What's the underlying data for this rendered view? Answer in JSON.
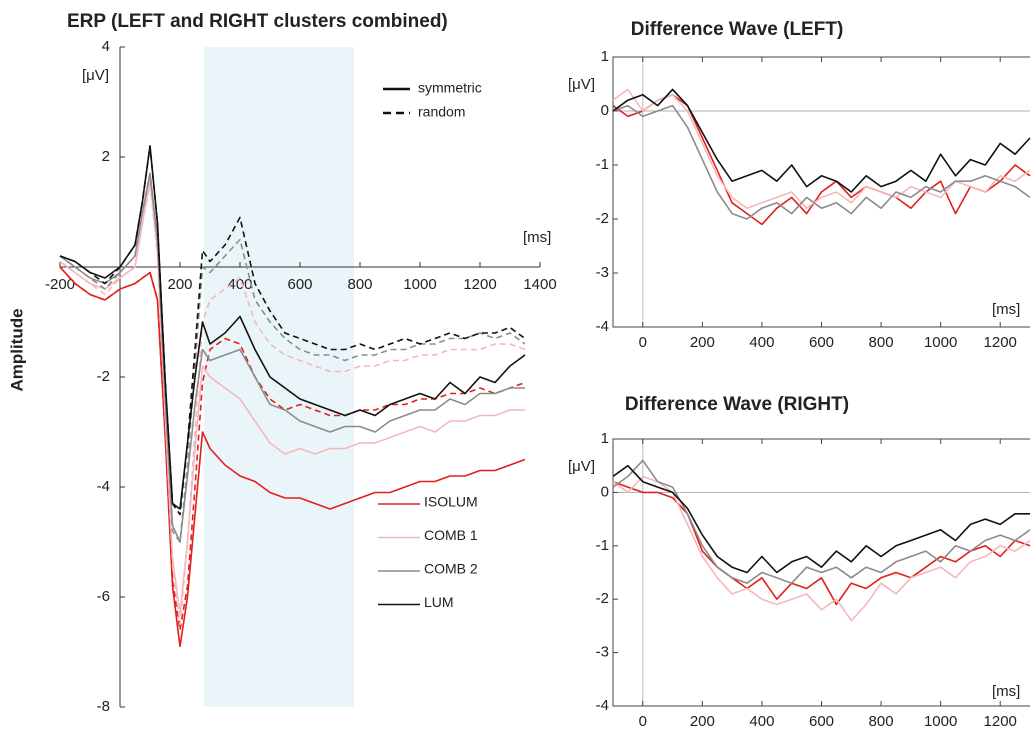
{
  "chart_data": [
    {
      "type": "line",
      "title": "ERP (LEFT and RIGHT clusters combined)",
      "y_label": "Amplitude",
      "y_unit": "[μV]",
      "x_unit": "[ms]",
      "xlim": [
        -200,
        1400
      ],
      "ylim": [
        -8,
        4
      ],
      "xticks": [
        -200,
        200,
        400,
        600,
        800,
        1000,
        1200,
        1400
      ],
      "yticks": [
        -8,
        -6,
        -4,
        -2,
        2,
        4
      ],
      "highlight": [
        280,
        780
      ],
      "line_styles": [
        {
          "name": "symmetric",
          "dash": false
        },
        {
          "name": "random",
          "dash": true
        }
      ],
      "x": [
        -200,
        -150,
        -100,
        -50,
        0,
        50,
        75,
        100,
        125,
        150,
        175,
        200,
        225,
        250,
        275,
        300,
        350,
        400,
        450,
        500,
        550,
        600,
        650,
        700,
        750,
        800,
        850,
        900,
        950,
        1000,
        1050,
        1100,
        1150,
        1200,
        1250,
        1300,
        1350
      ],
      "series": [
        {
          "name": "ISOLUM",
          "color": "#e0201c",
          "values": [
            [
              0.0,
              -0.3,
              -0.5,
              -0.6,
              -0.4,
              -0.3,
              -0.2,
              -0.1,
              -0.6,
              -3.0,
              -5.8,
              -6.9,
              -6.0,
              -4.5,
              -3.0,
              -3.3,
              -3.6,
              -3.8,
              -3.9,
              -4.1,
              -4.2,
              -4.2,
              -4.3,
              -4.4,
              -4.3,
              -4.2,
              -4.1,
              -4.1,
              -4.0,
              -3.9,
              -3.9,
              -3.8,
              -3.8,
              -3.7,
              -3.7,
              -3.6,
              -3.5
            ],
            [
              0.0,
              -0.3,
              -0.5,
              -0.6,
              -0.4,
              -0.3,
              -0.2,
              -0.1,
              -0.6,
              -3.0,
              -5.7,
              -6.6,
              -5.8,
              -4.0,
              -2.1,
              -1.5,
              -1.3,
              -1.4,
              -2.0,
              -2.4,
              -2.6,
              -2.5,
              -2.6,
              -2.7,
              -2.7,
              -2.6,
              -2.6,
              -2.5,
              -2.5,
              -2.4,
              -2.4,
              -2.3,
              -2.3,
              -2.2,
              -2.3,
              -2.2,
              -2.1
            ]
          ]
        },
        {
          "name": "COMB 1",
          "color": "#f4b8bc",
          "values": [
            [
              0.1,
              -0.1,
              -0.3,
              -0.4,
              -0.2,
              0.0,
              0.8,
              1.6,
              0.3,
              -2.6,
              -5.3,
              -6.3,
              -5.0,
              -3.3,
              -1.8,
              -2.0,
              -2.2,
              -2.4,
              -2.8,
              -3.2,
              -3.4,
              -3.3,
              -3.4,
              -3.3,
              -3.3,
              -3.2,
              -3.2,
              -3.1,
              -3.0,
              -2.9,
              -3.0,
              -2.8,
              -2.8,
              -2.7,
              -2.7,
              -2.6,
              -2.6
            ],
            [
              0.1,
              -0.1,
              -0.3,
              -0.5,
              -0.2,
              0.0,
              0.8,
              1.5,
              0.2,
              -2.6,
              -5.4,
              -6.5,
              -5.0,
              -3.0,
              -1.0,
              -0.6,
              -0.4,
              -0.2,
              -1.0,
              -1.4,
              -1.6,
              -1.7,
              -1.8,
              -1.9,
              -1.9,
              -1.8,
              -1.8,
              -1.7,
              -1.7,
              -1.6,
              -1.6,
              -1.5,
              -1.5,
              -1.5,
              -1.4,
              -1.4,
              -1.5
            ]
          ]
        },
        {
          "name": "COMB 2",
          "color": "#8c8c8c",
          "values": [
            [
              0.2,
              0.0,
              -0.2,
              -0.3,
              -0.1,
              0.2,
              1.0,
              1.7,
              0.5,
              -2.3,
              -4.7,
              -5.0,
              -3.8,
              -2.5,
              -1.5,
              -1.7,
              -1.6,
              -1.5,
              -2.0,
              -2.5,
              -2.6,
              -2.8,
              -2.9,
              -3.0,
              -2.9,
              -2.9,
              -3.0,
              -2.8,
              -2.7,
              -2.6,
              -2.6,
              -2.4,
              -2.5,
              -2.3,
              -2.3,
              -2.2,
              -2.2
            ],
            [
              0.2,
              0.0,
              -0.2,
              -0.4,
              -0.1,
              0.2,
              1.0,
              1.7,
              0.5,
              -2.3,
              -4.8,
              -5.0,
              -3.6,
              -1.8,
              0.0,
              -0.1,
              0.2,
              0.5,
              -0.6,
              -1.0,
              -1.3,
              -1.5,
              -1.6,
              -1.6,
              -1.7,
              -1.6,
              -1.6,
              -1.5,
              -1.5,
              -1.4,
              -1.4,
              -1.3,
              -1.3,
              -1.2,
              -1.3,
              -1.2,
              -1.4
            ]
          ]
        },
        {
          "name": "LUM",
          "color": "#111111",
          "values": [
            [
              0.2,
              0.1,
              -0.1,
              -0.2,
              0.0,
              0.4,
              1.2,
              2.2,
              0.8,
              -2.0,
              -4.3,
              -4.4,
              -3.2,
              -2.0,
              -1.0,
              -1.4,
              -1.2,
              -0.9,
              -1.5,
              -2.0,
              -2.2,
              -2.4,
              -2.5,
              -2.6,
              -2.7,
              -2.6,
              -2.7,
              -2.5,
              -2.4,
              -2.3,
              -2.4,
              -2.1,
              -2.3,
              -2.0,
              -2.1,
              -1.8,
              -1.6
            ],
            [
              0.2,
              0.1,
              -0.1,
              -0.3,
              0.0,
              0.4,
              1.2,
              2.2,
              0.8,
              -2.0,
              -4.3,
              -4.5,
              -3.2,
              -1.5,
              0.3,
              0.1,
              0.4,
              0.9,
              -0.3,
              -0.8,
              -1.2,
              -1.3,
              -1.4,
              -1.5,
              -1.5,
              -1.4,
              -1.5,
              -1.4,
              -1.3,
              -1.4,
              -1.3,
              -1.2,
              -1.3,
              -1.2,
              -1.2,
              -1.1,
              -1.3
            ]
          ]
        }
      ]
    },
    {
      "type": "line",
      "title": "Difference Wave (LEFT)",
      "y_unit": "[μV]",
      "x_unit": "[ms]",
      "xlim": [
        -100,
        1300
      ],
      "ylim": [
        -4,
        1
      ],
      "xticks": [
        0,
        200,
        400,
        600,
        800,
        1000,
        1200
      ],
      "yticks": [
        -4,
        -3,
        -2,
        -1,
        0,
        1
      ],
      "x": [
        -100,
        -50,
        0,
        50,
        100,
        150,
        200,
        250,
        300,
        350,
        400,
        450,
        500,
        550,
        600,
        650,
        700,
        750,
        800,
        850,
        900,
        950,
        1000,
        1050,
        1100,
        1150,
        1200,
        1250,
        1300
      ],
      "series": [
        {
          "color": "#e0201c",
          "values": [
            0.1,
            -0.1,
            0.0,
            0.2,
            0.3,
            0.1,
            -0.5,
            -1.1,
            -1.7,
            -1.9,
            -2.1,
            -1.8,
            -1.6,
            -1.9,
            -1.5,
            -1.3,
            -1.6,
            -1.4,
            -1.5,
            -1.6,
            -1.8,
            -1.5,
            -1.3,
            -1.9,
            -1.4,
            -1.5,
            -1.3,
            -1.0,
            -1.2
          ]
        },
        {
          "color": "#f4b8bc",
          "values": [
            0.2,
            0.4,
            0.0,
            0.2,
            0.3,
            0.0,
            -0.6,
            -1.2,
            -1.6,
            -1.8,
            -1.7,
            -1.6,
            -1.5,
            -1.8,
            -1.6,
            -1.5,
            -1.7,
            -1.4,
            -1.5,
            -1.6,
            -1.4,
            -1.5,
            -1.6,
            -1.3,
            -1.4,
            -1.5,
            -1.2,
            -1.3,
            -1.1
          ]
        },
        {
          "color": "#8c8c8c",
          "values": [
            0.0,
            0.1,
            -0.1,
            0.0,
            0.1,
            -0.3,
            -0.9,
            -1.5,
            -1.9,
            -2.0,
            -1.8,
            -1.7,
            -1.9,
            -1.6,
            -1.8,
            -1.7,
            -1.9,
            -1.6,
            -1.8,
            -1.5,
            -1.6,
            -1.4,
            -1.5,
            -1.3,
            -1.3,
            -1.2,
            -1.3,
            -1.4,
            -1.6
          ]
        },
        {
          "color": "#111111",
          "values": [
            0.0,
            0.2,
            0.3,
            0.1,
            0.4,
            0.1,
            -0.4,
            -0.9,
            -1.3,
            -1.2,
            -1.1,
            -1.3,
            -1.0,
            -1.4,
            -1.2,
            -1.3,
            -1.5,
            -1.2,
            -1.4,
            -1.3,
            -1.1,
            -1.3,
            -0.8,
            -1.2,
            -0.9,
            -1.0,
            -0.6,
            -0.8,
            -0.5
          ]
        }
      ]
    },
    {
      "type": "line",
      "title": "Difference Wave (RIGHT)",
      "y_unit": "[μV]",
      "x_unit": "[ms]",
      "xlim": [
        -100,
        1300
      ],
      "ylim": [
        -4,
        1
      ],
      "xticks": [
        0,
        200,
        400,
        600,
        800,
        1000,
        1200
      ],
      "yticks": [
        -4,
        -3,
        -2,
        -1,
        0,
        1
      ],
      "x": [
        -100,
        -50,
        0,
        50,
        100,
        150,
        200,
        250,
        300,
        350,
        400,
        450,
        500,
        550,
        600,
        650,
        700,
        750,
        800,
        850,
        900,
        950,
        1000,
        1050,
        1100,
        1150,
        1200,
        1250,
        1300
      ],
      "series": [
        {
          "color": "#e0201c",
          "values": [
            0.2,
            0.1,
            0.0,
            0.0,
            -0.1,
            -0.4,
            -1.1,
            -1.4,
            -1.6,
            -1.8,
            -1.6,
            -2.0,
            -1.7,
            -1.8,
            -1.6,
            -2.1,
            -1.7,
            -1.8,
            -1.6,
            -1.5,
            -1.6,
            -1.4,
            -1.2,
            -1.3,
            -1.1,
            -1.0,
            -1.2,
            -0.9,
            -1.0
          ]
        },
        {
          "color": "#f4b8bc",
          "values": [
            0.2,
            0.0,
            0.3,
            0.2,
            0.0,
            -0.6,
            -1.2,
            -1.6,
            -1.9,
            -1.8,
            -2.0,
            -2.1,
            -2.0,
            -1.9,
            -2.2,
            -2.0,
            -2.4,
            -2.1,
            -1.7,
            -1.9,
            -1.6,
            -1.5,
            -1.4,
            -1.6,
            -1.3,
            -1.2,
            -1.0,
            -1.1,
            -0.9
          ]
        },
        {
          "color": "#8c8c8c",
          "values": [
            0.1,
            0.3,
            0.6,
            0.2,
            0.1,
            -0.4,
            -1.0,
            -1.4,
            -1.6,
            -1.7,
            -1.5,
            -1.6,
            -1.7,
            -1.4,
            -1.5,
            -1.4,
            -1.6,
            -1.4,
            -1.5,
            -1.3,
            -1.2,
            -1.1,
            -1.3,
            -1.0,
            -1.1,
            -0.9,
            -0.8,
            -0.9,
            -0.7
          ]
        },
        {
          "color": "#111111",
          "values": [
            0.3,
            0.5,
            0.2,
            0.1,
            0.0,
            -0.3,
            -0.8,
            -1.2,
            -1.4,
            -1.5,
            -1.2,
            -1.5,
            -1.3,
            -1.2,
            -1.4,
            -1.1,
            -1.3,
            -1.0,
            -1.2,
            -1.0,
            -0.9,
            -0.8,
            -0.7,
            -0.9,
            -0.6,
            -0.5,
            -0.6,
            -0.4,
            -0.4
          ]
        }
      ]
    }
  ]
}
